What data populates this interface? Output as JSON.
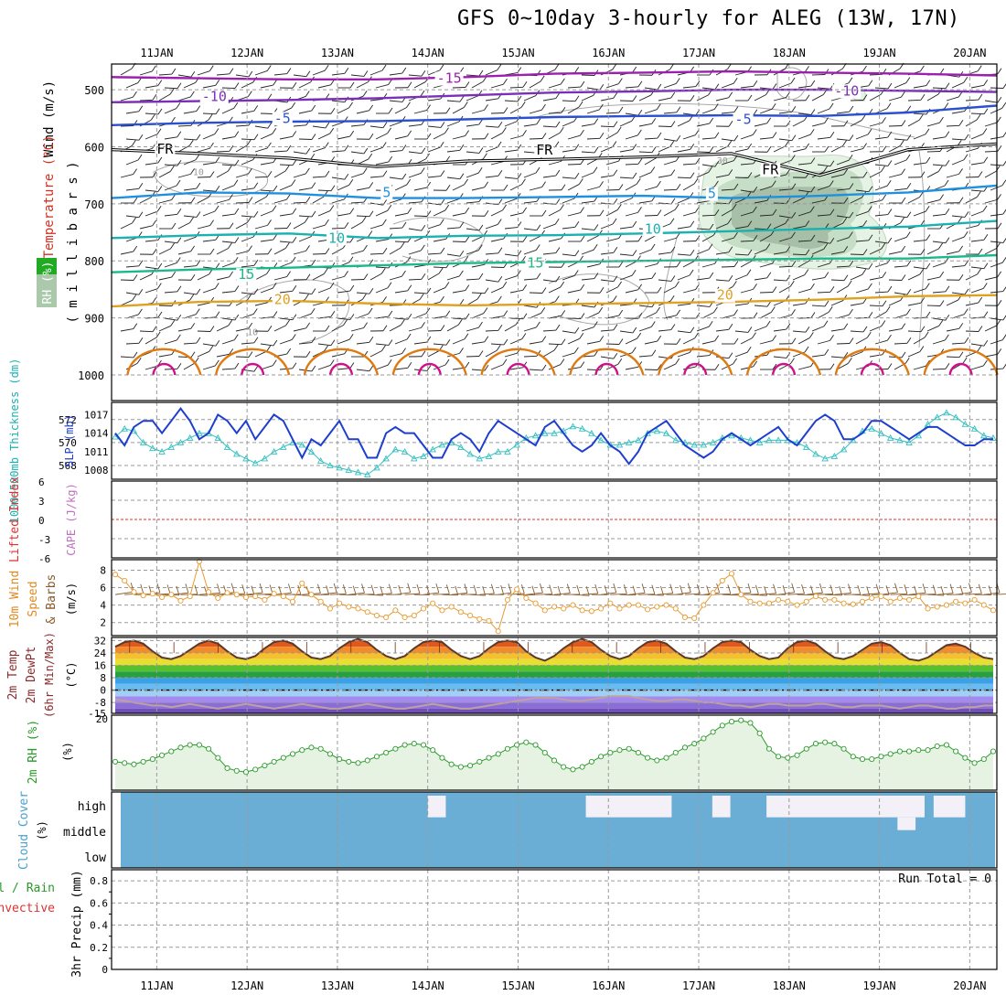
{
  "title": "GFS 0~10day 3-hourly for ALEG (13W, 17N)",
  "colors": {
    "temp_minus15": "#9c1fb0",
    "temp_minus10": "#7b2fb8",
    "temp_minus5": "#2b4fd0",
    "temp_freezing": "#000000",
    "temp_5": "#1e90e0",
    "temp_10": "#19b2b0",
    "temp_15": "#1bb88a",
    "temp_20": "#e0a020",
    "temp_25": "#e07a10",
    "temp_30": "#d0108a",
    "rh_contour": "#a8a8a8",
    "rh_fill_light": "#e5f3e5",
    "rh_fill_dark": "#90a890",
    "slp_line": "#1e3ecf",
    "thickness_line": "#35c0c0",
    "lifted_zero": "#e03030",
    "wind_speed": "#e89a30",
    "wind_barb": "#8a5a2a",
    "rh2m_line": "#2a9a2a",
    "rh2m_fill": "#e6f3e3",
    "cloud": "#6aaed6",
    "cloud_clear": "#f3f0f7",
    "grid": "#9a9a9a"
  },
  "chart_data": [
    {
      "type": "line",
      "panel": "upper-air",
      "title": "Wind (m/s) / Temperature (°C) / RH (%)",
      "ylabel": "( m i l l i b a r s )",
      "side_labels": {
        "wind": "Wind (m/s)",
        "temp": "Temperature (°C)",
        "rh": "RH (%)"
      },
      "y_ticks": [
        500,
        600,
        700,
        800,
        900,
        1000
      ],
      "ylim": [
        455,
        1000
      ],
      "x_ticks": [
        "11JAN",
        "12JAN",
        "13JAN",
        "14JAN",
        "15JAN",
        "16JAN",
        "17JAN",
        "18JAN",
        "19JAN",
        "20JAN"
      ],
      "xlim_days": [
        10.5,
        20.3
      ],
      "isotherms": [
        {
          "label": "-15",
          "color_key": "temp_minus15",
          "pressure": [
            478,
            480,
            482,
            482,
            478,
            472,
            470,
            468,
            470,
            472,
            475
          ]
        },
        {
          "label": "-10",
          "color_key": "temp_minus10",
          "pressure": [
            522,
            520,
            518,
            515,
            510,
            505,
            503,
            500,
            500,
            502,
            504
          ]
        },
        {
          "label": "-5",
          "color_key": "temp_minus5",
          "pressure": [
            562,
            558,
            556,
            555,
            552,
            548,
            546,
            545,
            546,
            540,
            528
          ]
        },
        {
          "label": "FR",
          "color_key": "temp_freezing",
          "pressure": [
            605,
            612,
            620,
            635,
            625,
            622,
            618,
            612,
            650,
            605,
            595
          ]
        },
        {
          "label": "5",
          "color_key": "temp_5",
          "pressure": [
            690,
            680,
            682,
            690,
            690,
            688,
            686,
            690,
            686,
            680,
            668
          ]
        },
        {
          "label": "10",
          "color_key": "temp_10",
          "pressure": [
            760,
            755,
            752,
            760,
            756,
            755,
            752,
            748,
            744,
            740,
            730
          ]
        },
        {
          "label": "15",
          "color_key": "temp_15",
          "pressure": [
            820,
            815,
            812,
            808,
            804,
            802,
            800,
            798,
            796,
            796,
            790
          ]
        },
        {
          "label": "20",
          "color_key": "temp_20",
          "pressure": [
            880,
            872,
            870,
            875,
            878,
            876,
            874,
            872,
            868,
            862,
            860
          ]
        }
      ],
      "labels_shown": [
        {
          "text": "-15",
          "day": 14.1,
          "p": 488
        },
        {
          "text": "-10",
          "day": 11.5,
          "p": 520
        },
        {
          "text": "-5",
          "day": 12.3,
          "p": 558
        },
        {
          "text": "FR",
          "day": 11.0,
          "p": 612
        },
        {
          "text": "FR",
          "day": 15.2,
          "p": 614
        },
        {
          "text": "FR",
          "day": 17.7,
          "p": 648
        },
        {
          "text": "5",
          "day": 13.5,
          "p": 688
        },
        {
          "text": "5",
          "day": 17.1,
          "p": 690
        },
        {
          "text": "10",
          "day": 12.9,
          "p": 768
        },
        {
          "text": "10",
          "day": 16.4,
          "p": 752
        },
        {
          "text": "15",
          "day": 11.9,
          "p": 832
        },
        {
          "text": "15",
          "day": 15.1,
          "p": 812
        },
        {
          "text": "20",
          "day": 12.3,
          "p": 876
        },
        {
          "text": "20",
          "day": 17.2,
          "p": 868
        },
        {
          "text": "-10",
          "day": 18.5,
          "p": 510
        },
        {
          "text": "-5",
          "day": 17.4,
          "p": 560
        }
      ],
      "rh_labels": [
        {
          "text": "10",
          "day": 11.4,
          "p": 650
        },
        {
          "text": "10",
          "day": 12.0,
          "p": 930
        },
        {
          "text": "30",
          "day": 17.2,
          "p": 630
        }
      ]
    },
    {
      "type": "line",
      "panel": "slp-thickness",
      "y_left_ticks": [
        568,
        570,
        572
      ],
      "y_right_ticks": [
        1008,
        1011,
        1014,
        1017
      ],
      "ylabel_left": "1000~500mb Thickness (dm)",
      "ylabel_right": "SLP (mb)",
      "series": [
        {
          "name": "SLP (mb)",
          "color_key": "slp_line",
          "values": [
            1014,
            1012,
            1015,
            1016,
            1016,
            1014,
            1016,
            1018,
            1016,
            1013,
            1014,
            1017,
            1016,
            1014,
            1016,
            1013,
            1015,
            1017,
            1016,
            1013,
            1010,
            1013,
            1012,
            1014,
            1016,
            1013,
            1013,
            1010,
            1010,
            1014,
            1015,
            1014,
            1014,
            1012,
            1010,
            1010,
            1013,
            1014,
            1013,
            1011,
            1014,
            1016,
            1015,
            1014,
            1013,
            1012,
            1015,
            1016,
            1014,
            1012,
            1011,
            1012,
            1014,
            1012,
            1011,
            1009,
            1011,
            1014,
            1015,
            1016,
            1014,
            1012,
            1011,
            1010,
            1011,
            1013,
            1014,
            1013,
            1012,
            1013,
            1014,
            1015,
            1013,
            1012,
            1014,
            1016,
            1017,
            1016,
            1013,
            1013,
            1014,
            1016,
            1016,
            1015,
            1014,
            1013,
            1014,
            1015,
            1015,
            1014,
            1013,
            1012,
            1012,
            1013,
            1013
          ]
        },
        {
          "name": "Thickness (dm)",
          "color_key": "thickness_line",
          "values": [
            570.5,
            571.2,
            571,
            570,
            569.5,
            569.2,
            569.6,
            570,
            570.4,
            570.8,
            570.8,
            570.4,
            569.6,
            569,
            568.6,
            568.2,
            568.6,
            569.2,
            569.6,
            570,
            569.8,
            569.2,
            568.4,
            568,
            567.8,
            567.6,
            567.4,
            567.2,
            567.8,
            568.6,
            569.4,
            569.2,
            568.6,
            568.8,
            569.4,
            569.8,
            570,
            569.6,
            569,
            568.6,
            568.8,
            569.2,
            569.2,
            569.8,
            570.4,
            570.6,
            570.8,
            570.8,
            571,
            571.4,
            571.2,
            570.8,
            570.2,
            569.8,
            569.8,
            570,
            570.2,
            570.8,
            571,
            570.8,
            570.2,
            570,
            569.8,
            569.8,
            570,
            570.4,
            570.6,
            570.4,
            570.2,
            570,
            570.2,
            570.2,
            570.2,
            570,
            569.6,
            569,
            568.6,
            568.8,
            569.4,
            570.2,
            571,
            571.2,
            570.8,
            570.4,
            570.2,
            570,
            570.6,
            571.6,
            572.2,
            572.6,
            572.2,
            571.6,
            571.2,
            570.6,
            570.4
          ]
        }
      ]
    },
    {
      "type": "line",
      "panel": "lifted-cape",
      "ylabel_left": "Lifted Index",
      "ylabel_right": "CAPE (J/kg)",
      "y_ticks": [
        "6",
        "3",
        "0",
        "-3",
        "-6"
      ],
      "series": [
        {
          "name": "Lifted Index zero line",
          "values": [
            0
          ]
        }
      ]
    },
    {
      "type": "line",
      "panel": "10m-wind",
      "ylabel": "10m Wind Speed (m/s) & Barbs",
      "y_ticks": [
        2,
        4,
        6,
        8
      ],
      "ylim": [
        0.5,
        9.2
      ],
      "series": [
        {
          "name": "10m Wind Speed (m/s)",
          "color_key": "wind_speed",
          "values": [
            7.5,
            6.8,
            5.5,
            5.1,
            5.3,
            4.9,
            5.2,
            4.5,
            5.0,
            9.0,
            5.5,
            4.8,
            5.4,
            5.2,
            4.9,
            5.0,
            4.6,
            5.3,
            5.0,
            4.4,
            6.5,
            5.2,
            4.4,
            3.6,
            4.2,
            3.8,
            3.6,
            3.2,
            2.8,
            2.6,
            3.4,
            2.6,
            2.8,
            3.6,
            4.2,
            3.4,
            3.8,
            3.2,
            2.8,
            2.4,
            2.2,
            1.0,
            4.6,
            5.8,
            4.8,
            4.2,
            3.4,
            3.8,
            3.6,
            4.0,
            3.4,
            3.3,
            3.6,
            4.2,
            3.6,
            4.0,
            4.0,
            3.5,
            3.8,
            4.0,
            3.6,
            2.6,
            2.5,
            4.0,
            5.4,
            6.8,
            7.6,
            5.2,
            4.4,
            4.2,
            4.2,
            4.6,
            4.4,
            4.0,
            4.4,
            5.0,
            4.6,
            4.6,
            4.2,
            4.1,
            4.4,
            4.8,
            5.0,
            4.4,
            4.8,
            4.6,
            5.0,
            3.6,
            3.8,
            4.0,
            4.4,
            4.2,
            4.6,
            4.0,
            3.4
          ]
        }
      ]
    },
    {
      "type": "area",
      "panel": "2m-temp",
      "ylabel": "2m Temp 2m DewPt (6hr Min/Max) (°C)",
      "y_ticks": [
        "32",
        "24",
        "16",
        "8",
        "0",
        "-8",
        "-15"
      ],
      "ylim": [
        -15,
        34
      ],
      "series": [
        {
          "name": "2m Temp (°C)",
          "values": [
            28,
            31,
            32,
            30,
            25,
            21,
            20,
            22,
            26,
            30,
            32,
            30,
            25,
            21,
            20,
            22,
            27,
            31,
            32,
            30,
            25,
            21,
            20,
            22,
            27,
            31,
            33,
            31,
            26,
            22,
            20,
            22,
            27,
            31,
            32,
            31,
            26,
            22,
            20,
            22,
            27,
            31,
            32,
            31,
            25,
            21,
            19,
            22,
            27,
            31,
            33,
            31,
            26,
            22,
            20,
            22,
            27,
            31,
            32,
            30,
            25,
            21,
            20,
            22,
            27,
            31,
            32,
            31,
            26,
            22,
            20,
            21,
            27,
            31,
            32,
            30,
            25,
            21,
            20,
            22,
            26,
            30,
            31,
            29,
            24,
            20,
            19,
            21,
            25,
            29,
            30,
            28,
            24,
            21,
            20
          ]
        },
        {
          "name": "2m DewPt (°C)",
          "values": [
            -6,
            -7,
            -8,
            -9,
            -10,
            -10,
            -11,
            -10,
            -9,
            -10,
            -11,
            -12,
            -11,
            -10,
            -9,
            -10,
            -11,
            -12,
            -11,
            -10,
            -9,
            -10,
            -11,
            -12,
            -12,
            -11,
            -10,
            -9,
            -10,
            -11,
            -12,
            -12,
            -11,
            -10,
            -9,
            -10,
            -11,
            -12,
            -12,
            -11,
            -10,
            -9,
            -8,
            -7,
            -6,
            -5,
            -5,
            -5,
            -6,
            -7,
            -7,
            -6,
            -5,
            -4,
            -4,
            -4,
            -5,
            -6,
            -7,
            -7,
            -6,
            -6,
            -7,
            -8,
            -8,
            -9,
            -10,
            -10,
            -11,
            -10,
            -9,
            -9,
            -10,
            -10,
            -10,
            -9,
            -9,
            -10,
            -11,
            -11,
            -10,
            -10,
            -10,
            -11,
            -12,
            -11,
            -10,
            -10,
            -11,
            -12,
            -12,
            -11,
            -11,
            -10,
            -10
          ]
        }
      ]
    },
    {
      "type": "line",
      "panel": "2m-rh",
      "ylabel": "2m RH (%)",
      "unit_label": "(%)",
      "y_ticks": [
        "20"
      ],
      "series": [
        {
          "name": "2m RH (%)",
          "color_key": "rh2m_line",
          "values": [
            42,
            41,
            40,
            42,
            44,
            47,
            50,
            53,
            55,
            55,
            52,
            45,
            37,
            35,
            34,
            36,
            39,
            42,
            45,
            48,
            51,
            53,
            52,
            48,
            44,
            42,
            41,
            43,
            46,
            49,
            52,
            55,
            56,
            55,
            51,
            45,
            40,
            38,
            39,
            42,
            45,
            48,
            52,
            55,
            57,
            55,
            49,
            43,
            38,
            36,
            38,
            42,
            46,
            49,
            51,
            52,
            49,
            45,
            43,
            45,
            49,
            53,
            56,
            60,
            65,
            70,
            73,
            74,
            72,
            64,
            52,
            46,
            45,
            47,
            52,
            56,
            57,
            56,
            52,
            46,
            44,
            44,
            46,
            48,
            50,
            50,
            51,
            51,
            54,
            55,
            50,
            45,
            41,
            44,
            50
          ]
        }
      ]
    },
    {
      "type": "heatmap",
      "panel": "cloud-cover",
      "ylabel": "Cloud Cover (%)",
      "levels": [
        "high",
        "middle",
        "low"
      ],
      "cells_note": "blue = clear, light = cloudy",
      "series": [
        {
          "name": "high",
          "cloudy_day_ranges": [
            [
              14.0,
              14.2
            ],
            [
              15.75,
              16.7
            ],
            [
              17.15,
              17.35
            ],
            [
              17.75,
              19.5
            ],
            [
              19.6,
              19.95
            ]
          ]
        },
        {
          "name": "middle",
          "cloudy_day_ranges": [
            [
              19.2,
              19.4
            ]
          ]
        },
        {
          "name": "low",
          "cloudy_day_ranges": []
        }
      ]
    },
    {
      "type": "bar",
      "panel": "precip",
      "ylabel": "3hr Precip (mm)",
      "side_labels": {
        "total": "Total / Rain",
        "conv": "Convective"
      },
      "run_total_label": "Run Total = 0",
      "y_ticks": [
        "0",
        "0.2",
        "0.4",
        "0.6",
        "0.8"
      ],
      "ylim": [
        0,
        0.9
      ],
      "values": []
    }
  ],
  "x_axis": {
    "ticks": [
      "11JAN",
      "12JAN",
      "13JAN",
      "14JAN",
      "15JAN",
      "16JAN",
      "17JAN",
      "18JAN",
      "19JAN",
      "20JAN"
    ]
  }
}
